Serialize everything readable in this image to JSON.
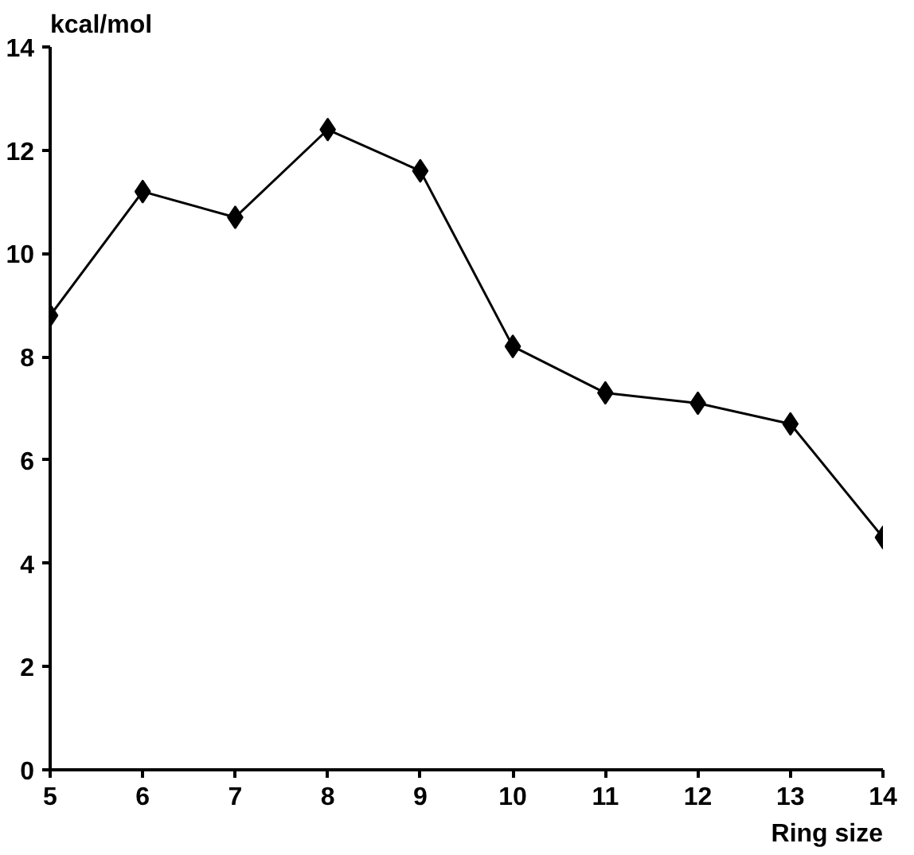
{
  "chart_data": {
    "type": "line",
    "xlabel": "Ring size",
    "ylabel": "kcal/mol",
    "x": [
      5,
      6,
      7,
      8,
      9,
      10,
      11,
      12,
      13,
      14
    ],
    "series": [
      {
        "color": "#000000",
        "values": [
          8.8,
          11.2,
          10.7,
          12.4,
          11.6,
          8.2,
          7.3,
          7.1,
          6.7,
          4.5
        ]
      }
    ],
    "xlim": [
      5,
      14
    ],
    "xticks": [
      5,
      6,
      7,
      8,
      9,
      10,
      11,
      12,
      13,
      14
    ],
    "ylim": [
      0,
      14
    ],
    "yticks": [
      0,
      2,
      4,
      6,
      8,
      10,
      12,
      14
    ],
    "grid": false,
    "marker": "diamond",
    "line_style": "solid"
  }
}
